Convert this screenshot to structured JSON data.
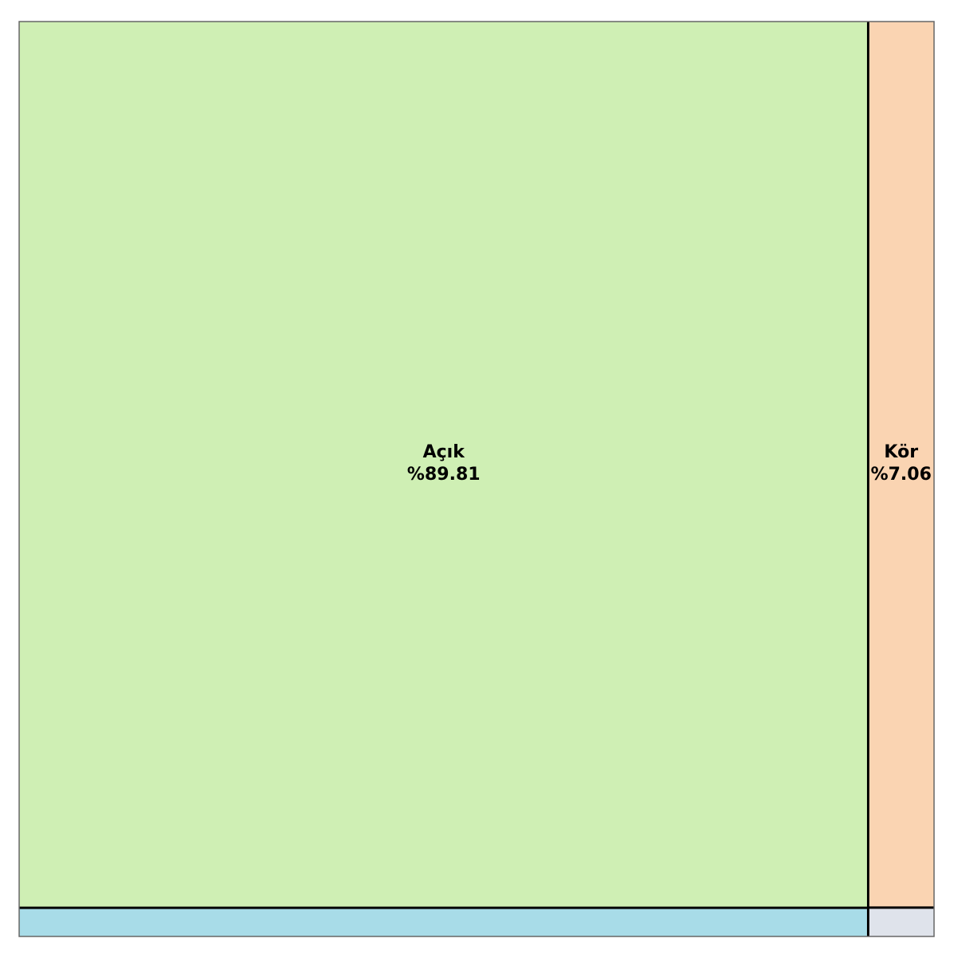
{
  "chart_data": {
    "type": "mosaic",
    "title": "",
    "xlabel": "",
    "ylabel": "",
    "columns": [
      {
        "share": 0.928,
        "segments": [
          {
            "label": "Açık",
            "value_text": "%89.81",
            "value": 89.81,
            "color": "#cfefb4"
          },
          {
            "label": "",
            "value_text": "",
            "value": 2.9,
            "color": "#a8dce8"
          }
        ]
      },
      {
        "share": 0.072,
        "segments": [
          {
            "label": "Kör",
            "value_text": "%7.06",
            "value": 7.06,
            "color": "#fad4b2"
          },
          {
            "label": "",
            "value_text": "",
            "value": 0.23,
            "color": "#dfe3eb"
          }
        ]
      }
    ],
    "divider_color": "#000000",
    "frame_color": "#666666"
  }
}
